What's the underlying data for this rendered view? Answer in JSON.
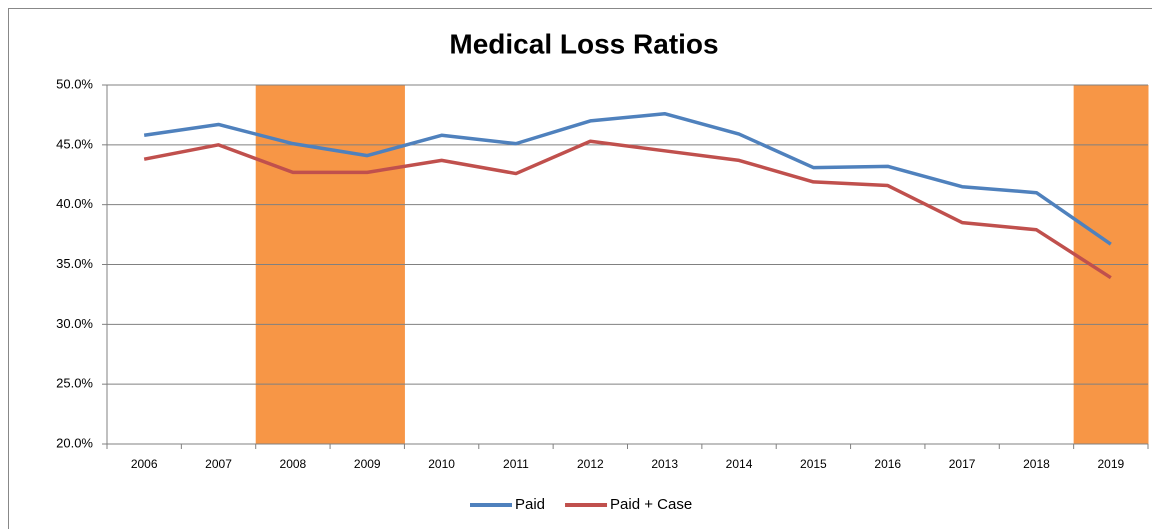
{
  "chart_data": {
    "type": "line",
    "title": "Medical Loss Ratios",
    "categories": [
      "2006",
      "2007",
      "2008",
      "2009",
      "2010",
      "2011",
      "2012",
      "2013",
      "2014",
      "2015",
      "2016",
      "2017",
      "2018",
      "2019"
    ],
    "series": [
      {
        "name": "Paid",
        "color": "#4f81bd",
        "values": [
          45.8,
          46.7,
          45.1,
          44.1,
          45.8,
          45.1,
          47.0,
          47.6,
          45.9,
          43.1,
          43.2,
          41.5,
          41.0,
          36.7
        ]
      },
      {
        "name": "Paid + Case",
        "color": "#c0504d",
        "values": [
          43.8,
          45.0,
          42.7,
          42.7,
          43.7,
          42.6,
          45.3,
          44.5,
          43.7,
          41.9,
          41.6,
          38.5,
          37.9,
          33.9
        ]
      }
    ],
    "ylim": [
      20,
      50
    ],
    "yticks": [
      {
        "value": 20,
        "label": "20.0%"
      },
      {
        "value": 25,
        "label": "25.0%"
      },
      {
        "value": 30,
        "label": "30.0%"
      },
      {
        "value": 35,
        "label": "35.0%"
      },
      {
        "value": 40,
        "label": "40.0%"
      },
      {
        "value": 45,
        "label": "45.0%"
      },
      {
        "value": 50,
        "label": "50.0%"
      }
    ],
    "grid": true,
    "legend": "bottom",
    "highlight": {
      "color": "#f79646",
      "categories": [
        "2008",
        "2009",
        "2019"
      ]
    }
  }
}
